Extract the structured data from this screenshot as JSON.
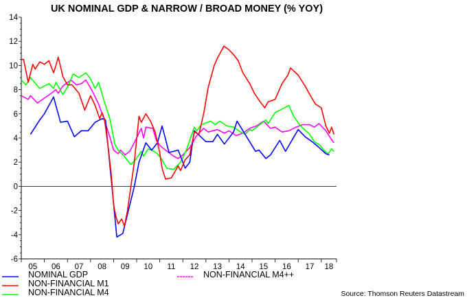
{
  "chart_data": {
    "type": "line",
    "title": "UK NOMINAL GDP & NARROW / BROAD MONEY (% YOY)",
    "source": "Source: Thomson Reuters Datastream",
    "xlabel": "",
    "ylabel": "",
    "xlim": [
      2005.0,
      2018.66
    ],
    "ylim": [
      -6,
      14
    ],
    "y_ticks": [
      "-6",
      "-4",
      "-2",
      "0",
      "2",
      "4",
      "6",
      "8",
      "10",
      "12",
      "14"
    ],
    "x_tick_labels": [
      "05",
      "06",
      "07",
      "08",
      "09",
      "10",
      "11",
      "12",
      "13",
      "14",
      "15",
      "16",
      "17",
      "18"
    ],
    "grid": false,
    "zero_line": true,
    "legend_position": "bottom",
    "series": [
      {
        "name": "NOMINAL GDP",
        "color": "#0000ff",
        "x": [
          2005.4,
          2005.8,
          2006.0,
          2006.4,
          2006.7,
          2007.0,
          2007.3,
          2007.6,
          2007.9,
          2008.2,
          2008.5,
          2008.65,
          2009.14,
          2009.4,
          2009.9,
          2010.1,
          2010.4,
          2010.65,
          2010.9,
          2011.1,
          2011.4,
          2011.8,
          2012.1,
          2012.3,
          2012.5,
          2013.0,
          2013.3,
          2013.5,
          2013.8,
          2014.2,
          2014.35,
          2015.15,
          2015.3,
          2015.6,
          2015.8,
          2016.2,
          2016.45,
          2017.0,
          2017.3,
          2017.6,
          2017.85,
          2018.2,
          2018.35
        ],
        "y": [
          4.3,
          5.5,
          6.0,
          7.4,
          5.3,
          5.4,
          4.1,
          4.6,
          4.6,
          5.3,
          5.6,
          5.5,
          -4.2,
          -3.9,
          0,
          2.0,
          3.6,
          3.0,
          3.6,
          5.0,
          2.8,
          3.0,
          1.5,
          2.0,
          4.6,
          3.7,
          3.7,
          4.3,
          3.5,
          4.5,
          5.4,
          2.9,
          3.0,
          2.3,
          2.6,
          3.8,
          2.9,
          4.7,
          4.1,
          3.7,
          3.3,
          2.7,
          2.6
        ]
      },
      {
        "name": "NON-FINANCIAL M1",
        "color": "#ff0000",
        "x": [
          2005.0,
          2005.1,
          2005.3,
          2005.5,
          2005.6,
          2005.8,
          2006.0,
          2006.2,
          2006.4,
          2006.5,
          2006.6,
          2006.8,
          2007.0,
          2007.2,
          2007.5,
          2007.75,
          2008.0,
          2008.2,
          2008.4,
          2008.5,
          2008.6,
          2008.75,
          2008.9,
          2009.0,
          2009.1,
          2009.2,
          2009.35,
          2009.47,
          2009.6,
          2009.9,
          2010.1,
          2010.2,
          2010.4,
          2010.6,
          2010.8,
          2011.0,
          2011.1,
          2011.25,
          2011.5,
          2011.8,
          2011.9,
          2012.1,
          2012.3,
          2012.5,
          2012.7,
          2012.9,
          2013.1,
          2013.36,
          2013.5,
          2013.78,
          2014.0,
          2014.2,
          2014.4,
          2014.6,
          2014.9,
          2015.1,
          2015.35,
          2015.55,
          2015.7,
          2016.0,
          2016.3,
          2016.55,
          2016.67,
          2017.0,
          2017.3,
          2017.5,
          2017.75,
          2018.0,
          2018.2,
          2018.35,
          2018.45,
          2018.55
        ],
        "y": [
          10.5,
          10.5,
          8.6,
          10.1,
          9.7,
          10.3,
          10.1,
          10.4,
          9.4,
          10.0,
          10.7,
          9.1,
          8.4,
          8.4,
          7.7,
          6.3,
          7.5,
          6.7,
          5.6,
          6.1,
          5.6,
          3.5,
          1.0,
          -1.5,
          -2.5,
          -3.1,
          -2.7,
          -3.3,
          -2.0,
          2.0,
          5.8,
          5.3,
          6.0,
          5.4,
          4.5,
          2.8,
          1.5,
          0.6,
          0.7,
          1.7,
          1.3,
          2.2,
          2.6,
          4.5,
          4.3,
          6.0,
          8.2,
          10.0,
          10.6,
          11.6,
          11.3,
          10.9,
          10.4,
          9.4,
          8.5,
          7.7,
          7.0,
          6.5,
          7.0,
          7.2,
          8.5,
          9.2,
          9.8,
          9.2,
          8.3,
          7.6,
          6.8,
          6.5,
          5.0,
          4.4,
          4.9,
          4.3
        ]
      },
      {
        "name": "NON-FINANCIAL M4",
        "color": "#00ff00",
        "x": [
          2005.0,
          2005.2,
          2005.4,
          2005.8,
          2006.2,
          2006.4,
          2006.5,
          2006.8,
          2007.0,
          2007.25,
          2007.5,
          2007.8,
          2008.0,
          2008.2,
          2008.35,
          2008.6,
          2008.85,
          2009.05,
          2009.2,
          2009.5,
          2009.75,
          2009.95,
          2010.2,
          2010.3,
          2010.5,
          2010.75,
          2010.9,
          2011.1,
          2011.3,
          2011.6,
          2011.9,
          2012.15,
          2012.5,
          2012.6,
          2012.8,
          2013.2,
          2013.4,
          2013.6,
          2013.9,
          2014.2,
          2014.5,
          2014.7,
          2014.9,
          2015.0,
          2015.2,
          2015.6,
          2015.7,
          2016.0,
          2016.3,
          2016.6,
          2016.8,
          2017.1,
          2017.5,
          2017.7,
          2017.95,
          2018.1,
          2018.3,
          2018.45,
          2018.55
        ],
        "y": [
          8.8,
          8.4,
          9.0,
          8.1,
          8.5,
          8.1,
          8.6,
          7.6,
          8.2,
          9.3,
          9.0,
          9.4,
          8.9,
          8.1,
          8.6,
          7.0,
          5.5,
          3.5,
          3.0,
          2.4,
          1.8,
          2.2,
          2.9,
          2.5,
          3.1,
          2.9,
          2.7,
          2.2,
          1.5,
          1.4,
          2.0,
          3.0,
          4.9,
          4.6,
          5.1,
          5.4,
          5.1,
          5.4,
          5.0,
          4.9,
          4.5,
          4.3,
          4.7,
          4.6,
          4.9,
          5.5,
          5.2,
          6.1,
          6.4,
          6.7,
          5.8,
          5.0,
          4.3,
          3.7,
          3.4,
          3.0,
          2.7,
          3.1,
          2.9
        ]
      },
      {
        "name": "NON-FINANCIAL M4++",
        "color": "#ff00ff",
        "x": [
          2005.0,
          2005.3,
          2005.4,
          2005.7,
          2006.0,
          2006.3,
          2006.5,
          2006.6,
          2006.8,
          2007.15,
          2007.4,
          2007.6,
          2007.8,
          2008.1,
          2008.35,
          2008.6,
          2008.85,
          2009.0,
          2009.2,
          2009.3,
          2009.5,
          2009.7,
          2009.95,
          2010.2,
          2010.3,
          2010.4,
          2010.7,
          2010.85,
          2011.05,
          2011.25,
          2011.6,
          2011.8,
          2012.0,
          2012.3,
          2012.6,
          2012.9,
          2013.1,
          2013.5,
          2013.8,
          2014.0,
          2014.3,
          2014.6,
          2014.9,
          2015.2,
          2015.5,
          2015.8,
          2016.0,
          2016.3,
          2016.6,
          2016.9,
          2017.2,
          2017.5,
          2017.7,
          2017.9,
          2018.2,
          2018.4,
          2018.55
        ],
        "y": [
          7.5,
          7.2,
          7.5,
          6.9,
          7.3,
          7.7,
          8.0,
          7.7,
          8.3,
          8.8,
          8.4,
          8.5,
          8.8,
          7.8,
          6.8,
          5.5,
          4.0,
          3.0,
          2.7,
          3.0,
          2.6,
          2.9,
          3.8,
          4.8,
          4.0,
          4.9,
          4.8,
          3.8,
          3.3,
          3.0,
          2.5,
          2.3,
          2.6,
          3.2,
          4.2,
          4.8,
          4.5,
          4.7,
          4.4,
          4.6,
          4.2,
          4.4,
          4.8,
          5.0,
          5.4,
          4.8,
          4.9,
          4.5,
          4.6,
          4.9,
          5.1,
          5.1,
          4.9,
          5.2,
          4.6,
          4.0,
          3.6
        ]
      }
    ]
  }
}
